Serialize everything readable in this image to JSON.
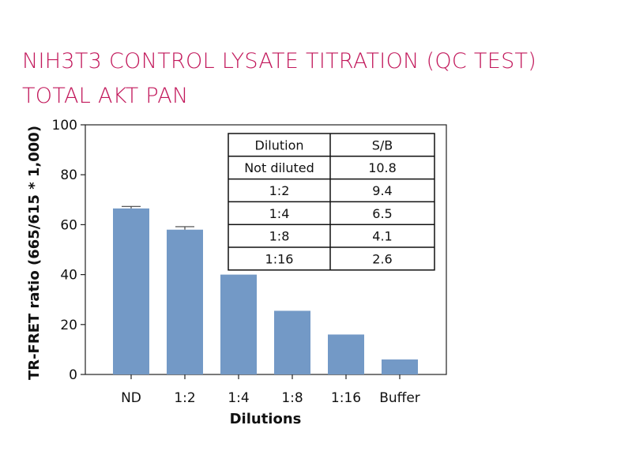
{
  "header": {
    "title_line1": "NIH3T3 CONTROL LYSATE TITRATION (QC TEST)",
    "title_line2": "TOTAL AKT PAN",
    "title_color": "#c2185b"
  },
  "chart_data": {
    "type": "bar",
    "title": "NIH3T3 CONTROL LYSATE TITRATION (QC TEST) TOTAL AKT PAN",
    "categories": [
      "ND",
      "1:2",
      "1:4",
      "1:8",
      "1:16",
      "Buffer"
    ],
    "values": [
      66.5,
      58,
      40,
      25.5,
      16,
      6
    ],
    "error": [
      0.8,
      1.2,
      0,
      0,
      0,
      0
    ],
    "ylim": [
      0,
      100
    ],
    "yticks": [
      0,
      20,
      40,
      60,
      80,
      100
    ],
    "xlabel": "Dilutions",
    "ylabel": "TR-FRET ratio (665/615 * 1,000)",
    "bar_color": "#7399c6",
    "grid": false,
    "table": {
      "headers": [
        "Dilution",
        "S/B"
      ],
      "rows": [
        [
          "Not diluted",
          "10.8"
        ],
        [
          "1:2",
          "9.4"
        ],
        [
          "1:4",
          "6.5"
        ],
        [
          "1:8",
          "4.1"
        ],
        [
          "1:16",
          "2.6"
        ]
      ]
    }
  }
}
